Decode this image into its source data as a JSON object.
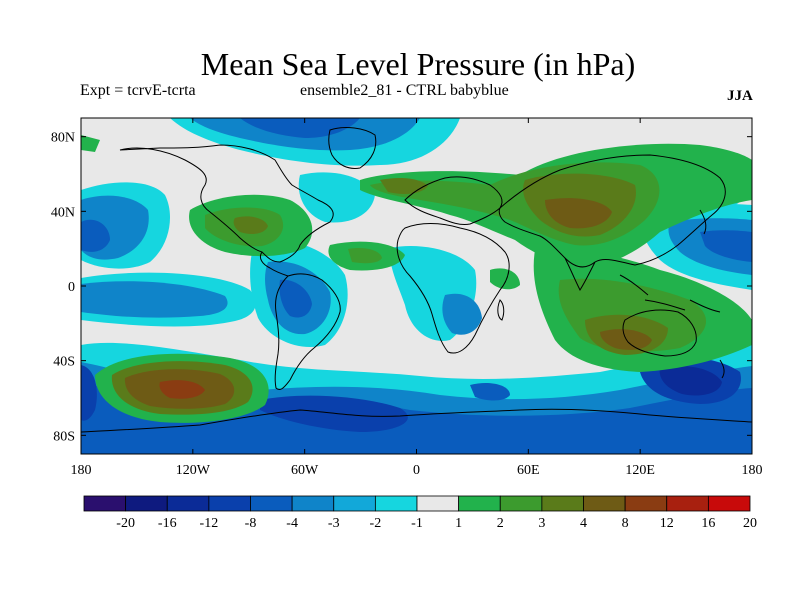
{
  "title": "Mean Sea Level Pressure (in hPa)",
  "subtitle_left": "Expt = tcrvE-tcrta",
  "subtitle_center": "ensemble2_81 - CTRL babyblue",
  "season": "JJA",
  "map": {
    "projection": "cylindrical equidistant",
    "lon_range": [
      -180,
      180
    ],
    "lat_range": [
      -90,
      90
    ],
    "lon_ticks": [
      "180",
      "120W",
      "60W",
      "0",
      "60E",
      "120E",
      "180"
    ],
    "lat_ticks": [
      "80N",
      "40N",
      "0",
      "40S",
      "80S"
    ],
    "background_color": "#e8e8e8",
    "coastline_color": "#000000"
  },
  "colorbar": {
    "colors": [
      "#2a0f6e",
      "#0e1a7f",
      "#0b2b97",
      "#0a40ac",
      "#0a5cbd",
      "#0f84c9",
      "#12a8d9",
      "#16d6df",
      "#e8e8e8",
      "#22b24c",
      "#3c9b2e",
      "#5a7b1a",
      "#6e5b15",
      "#8a3c12",
      "#a8200f",
      "#c80a0a"
    ],
    "labels": [
      "-20",
      "-16",
      "-12",
      "-8",
      "-4",
      "-3",
      "-2",
      "-1",
      "1",
      "2",
      "3",
      "4",
      "8",
      "12",
      "16",
      "20"
    ]
  }
}
